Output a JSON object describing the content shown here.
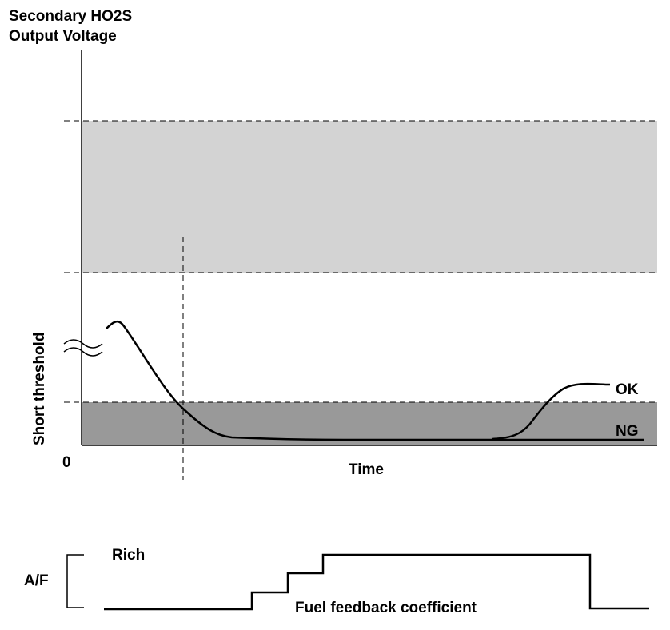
{
  "texts": {
    "ylabel_line1": "Secondary HO2S",
    "ylabel_line2": "Output Voltage",
    "short_threshold": "Short threshold",
    "origin": "0",
    "xlabel": "Time",
    "ok": "OK",
    "ng": "NG",
    "af": "A/F",
    "rich": "Rich",
    "fuel_feedback": "Fuel feedback coefficient"
  },
  "colors": {
    "upper_band": "#d3d3d3",
    "lower_band": "#999999",
    "ink": "#000000"
  }
}
